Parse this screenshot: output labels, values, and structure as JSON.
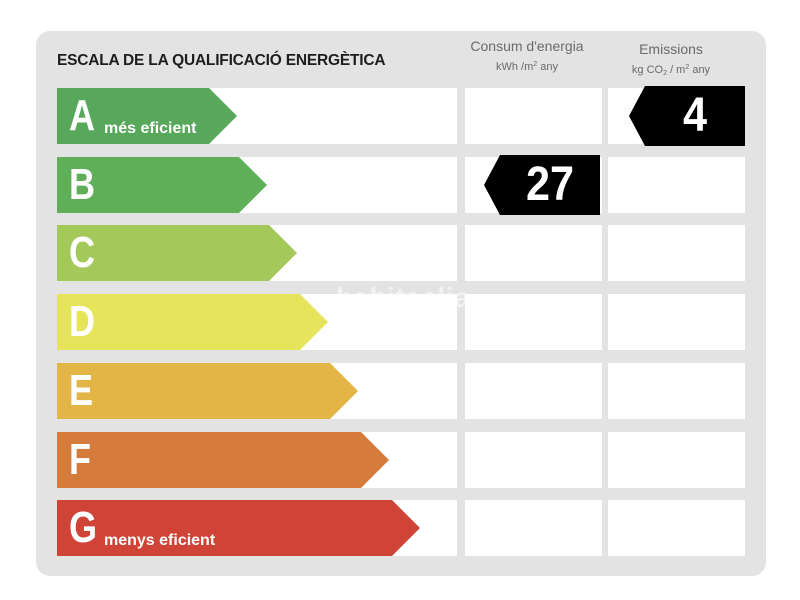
{
  "title": "ESCALA DE LA QUALIFICACIÓ ENERGÈTICA",
  "columns": {
    "consum": {
      "title": "Consum d'energia",
      "unit_prefix": "kWh /m",
      "unit_sup": "2",
      "unit_suffix": " any"
    },
    "emissions": {
      "title": "Emissions",
      "unit_prefix": "kg CO",
      "unit_sub": "2",
      "unit_mid": " / m",
      "unit_sup": "2",
      "unit_suffix": " any"
    }
  },
  "ratings": [
    {
      "letter": "A",
      "label": "més eficient",
      "color": "#57a85a"
    },
    {
      "letter": "B",
      "label": "",
      "color": "#5fae58"
    },
    {
      "letter": "C",
      "label": "",
      "color": "#a4c85a"
    },
    {
      "letter": "D",
      "label": "",
      "color": "#e6e45a"
    },
    {
      "letter": "E",
      "label": "",
      "color": "#e3b446"
    },
    {
      "letter": "F",
      "label": "",
      "color": "#d57b3b"
    },
    {
      "letter": "G",
      "label": "menys eficient",
      "color": "#d04437"
    }
  ],
  "consum_value": {
    "rating": "B",
    "value": "27"
  },
  "emissions_value": {
    "rating": "A",
    "value": "4"
  },
  "watermark": "habitaclia"
}
